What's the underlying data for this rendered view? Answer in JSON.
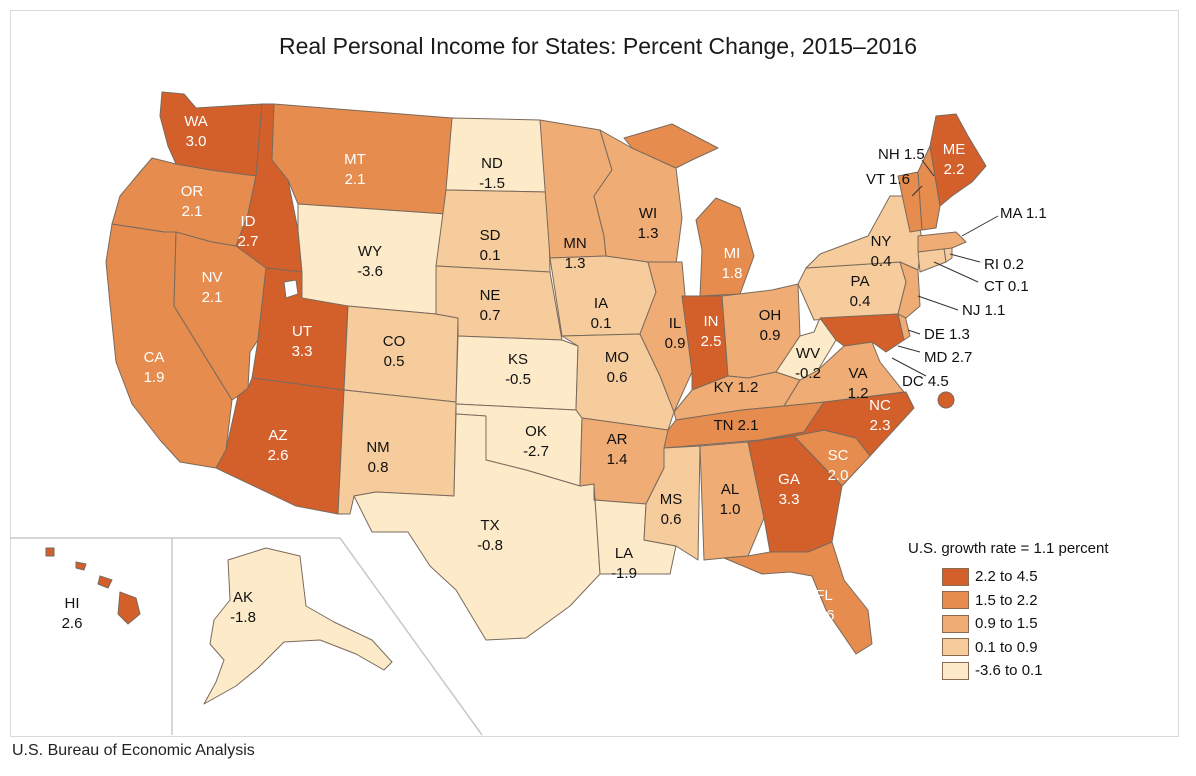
{
  "title": "Real Personal Income for States: Percent Change, 2015–2016",
  "source": "U.S. Bureau of Economic Analysis",
  "colors": {
    "c1": "#d35f2b",
    "c2": "#e58c4e",
    "c3": "#efac74",
    "c4": "#f6cc9c",
    "c5": "#fdeac9",
    "border": "#7a6a5c",
    "water": "#ffffff"
  },
  "legend": {
    "title": "U.S. growth rate = 1.1 percent",
    "items": [
      {
        "label": "2.2 to 4.5",
        "color": "#d35f2b"
      },
      {
        "label": "1.5 to 2.2",
        "color": "#e58c4e"
      },
      {
        "label": "0.9 to 1.5",
        "color": "#efac74"
      },
      {
        "label": "0.1 to 0.9",
        "color": "#f6cc9c"
      },
      {
        "label": "-3.6 to 0.1",
        "color": "#fdeac9"
      }
    ]
  },
  "states": {
    "WA": {
      "abbr": "WA",
      "value": "3.0"
    },
    "OR": {
      "abbr": "OR",
      "value": "2.1"
    },
    "CA": {
      "abbr": "CA",
      "value": "1.9"
    },
    "ID": {
      "abbr": "ID",
      "value": "2.7"
    },
    "NV": {
      "abbr": "NV",
      "value": "2.1"
    },
    "UT": {
      "abbr": "UT",
      "value": "3.3"
    },
    "AZ": {
      "abbr": "AZ",
      "value": "2.6"
    },
    "MT": {
      "abbr": "MT",
      "value": "2.1"
    },
    "WY": {
      "abbr": "WY",
      "value": "-3.6"
    },
    "CO": {
      "abbr": "CO",
      "value": "0.5"
    },
    "NM": {
      "abbr": "NM",
      "value": "0.8"
    },
    "ND": {
      "abbr": "ND",
      "value": "-1.5"
    },
    "SD": {
      "abbr": "SD",
      "value": "0.1"
    },
    "NE": {
      "abbr": "NE",
      "value": "0.7"
    },
    "KS": {
      "abbr": "KS",
      "value": "-0.5"
    },
    "OK": {
      "abbr": "OK",
      "value": "-2.7"
    },
    "TX": {
      "abbr": "TX",
      "value": "-0.8"
    },
    "MN": {
      "abbr": "MN",
      "value": "1.3"
    },
    "IA": {
      "abbr": "IA",
      "value": "0.1"
    },
    "MO": {
      "abbr": "MO",
      "value": "0.6"
    },
    "AR": {
      "abbr": "AR",
      "value": "1.4"
    },
    "LA": {
      "abbr": "LA",
      "value": "-1.9"
    },
    "WI": {
      "abbr": "WI",
      "value": "1.3"
    },
    "IL": {
      "abbr": "IL",
      "value": "0.9"
    },
    "MS": {
      "abbr": "MS",
      "value": "0.6"
    },
    "MI": {
      "abbr": "MI",
      "value": "1.8"
    },
    "IN": {
      "abbr": "IN",
      "value": "2.5"
    },
    "OH": {
      "abbr": "OH",
      "value": "0.9"
    },
    "KY": {
      "abbr": "KY",
      "value": "1.2"
    },
    "TN": {
      "abbr": "TN",
      "value": "2.1"
    },
    "AL": {
      "abbr": "AL",
      "value": "1.0"
    },
    "GA": {
      "abbr": "GA",
      "value": "3.3"
    },
    "FL": {
      "abbr": "FL",
      "value": "1.6"
    },
    "SC": {
      "abbr": "SC",
      "value": "2.0"
    },
    "NC": {
      "abbr": "NC",
      "value": "2.3"
    },
    "VA": {
      "abbr": "VA",
      "value": "1.2"
    },
    "WV": {
      "abbr": "WV",
      "value": "-0.2"
    },
    "PA": {
      "abbr": "PA",
      "value": "0.4"
    },
    "NY": {
      "abbr": "NY",
      "value": "0.4"
    },
    "ME": {
      "abbr": "ME",
      "value": "2.2"
    },
    "HI": {
      "abbr": "HI",
      "value": "2.6"
    },
    "AK": {
      "abbr": "AK",
      "value": "-1.8"
    }
  },
  "callouts": {
    "NH": "NH 1.5",
    "VT": "VT 1.6",
    "MA": "MA 1.1",
    "RI": "RI 0.2",
    "CT": "CT 0.1",
    "NJ": "NJ 1.1",
    "DE": "DE 1.3",
    "MD": "MD 2.7",
    "DC": "DC 4.5"
  }
}
